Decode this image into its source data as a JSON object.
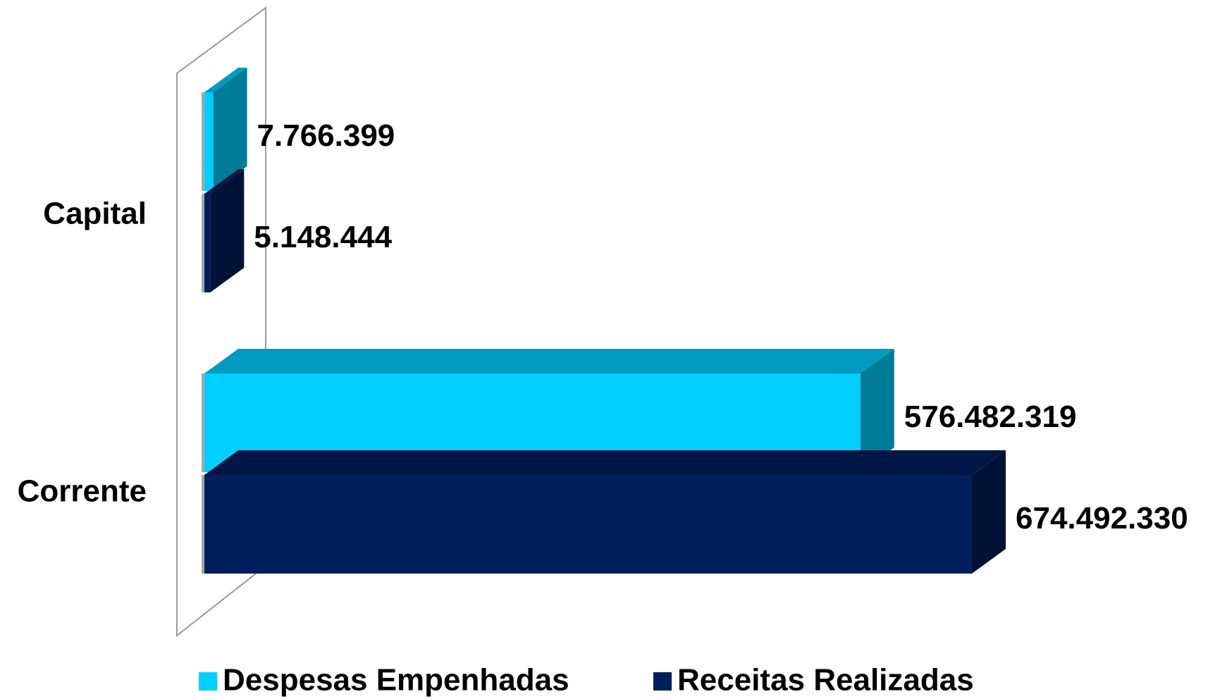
{
  "chart_data": {
    "type": "bar3d",
    "categories": [
      "Capital",
      "Corrente"
    ],
    "series": [
      {
        "name": "Despesas Empenhadas",
        "color": "#00cfff",
        "values": [
          7766399,
          576482319
        ],
        "value_labels": [
          "7.766.399",
          "576.482.319"
        ]
      },
      {
        "name": "Receitas Realizadas",
        "color": "#001f5c",
        "values": [
          5148444,
          674492330
        ],
        "value_labels": [
          "5.148.444",
          "674.492.330"
        ]
      }
    ]
  }
}
